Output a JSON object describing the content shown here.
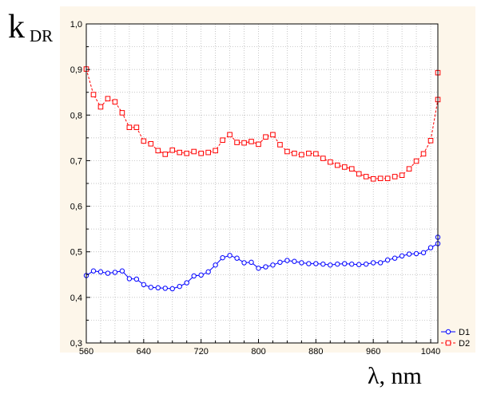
{
  "chart_data": {
    "type": "line",
    "ylabel_main": "k",
    "ylabel_sub": "DR",
    "xlabel": "λ, nm",
    "xlim": [
      560,
      1050
    ],
    "ylim": [
      0.3,
      1.0
    ],
    "xticks": [
      560,
      640,
      720,
      800,
      880,
      960,
      1040
    ],
    "yticks": [
      0.3,
      0.4,
      0.5,
      0.6,
      0.7,
      0.8,
      0.9,
      1.0
    ],
    "xtick_labels": [
      "560",
      "640",
      "720",
      "800",
      "880",
      "960",
      "1040"
    ],
    "ytick_labels": [
      "0,3",
      "0,4",
      "0,5",
      "0,6",
      "0,7",
      "0,8",
      "0,9",
      "1,0"
    ],
    "grid": true,
    "legend_position": "bottom-right",
    "x": [
      560,
      570,
      580,
      590,
      600,
      610,
      620,
      630,
      640,
      650,
      660,
      670,
      680,
      690,
      700,
      710,
      720,
      730,
      740,
      750,
      760,
      770,
      780,
      790,
      800,
      810,
      820,
      830,
      840,
      850,
      860,
      870,
      880,
      890,
      900,
      910,
      920,
      930,
      940,
      950,
      960,
      970,
      980,
      990,
      1000,
      1010,
      1020,
      1030,
      1040,
      1050
    ],
    "series": [
      {
        "name": "D1",
        "color": "#0000ff",
        "marker": "circle",
        "line_style": "solid",
        "values": [
          0.448,
          0.458,
          0.456,
          0.453,
          0.455,
          0.458,
          0.441,
          0.44,
          0.428,
          0.422,
          0.421,
          0.42,
          0.419,
          0.424,
          0.432,
          0.447,
          0.449,
          0.456,
          0.471,
          0.487,
          0.492,
          0.486,
          0.476,
          0.477,
          0.464,
          0.467,
          0.471,
          0.477,
          0.481,
          0.479,
          0.476,
          0.474,
          0.474,
          0.473,
          0.471,
          0.473,
          0.474,
          0.473,
          0.472,
          0.473,
          0.476,
          0.476,
          0.482,
          0.486,
          0.491,
          0.495,
          0.496,
          0.498,
          0.509,
          0.518
        ]
      },
      {
        "name": "D2",
        "color": "#ff0000",
        "marker": "square",
        "line_style": "dashed",
        "values": [
          0.901,
          0.845,
          0.818,
          0.836,
          0.829,
          0.805,
          0.773,
          0.773,
          0.743,
          0.737,
          0.722,
          0.714,
          0.723,
          0.718,
          0.716,
          0.72,
          0.716,
          0.718,
          0.722,
          0.745,
          0.757,
          0.74,
          0.739,
          0.742,
          0.736,
          0.752,
          0.757,
          0.735,
          0.72,
          0.716,
          0.713,
          0.716,
          0.715,
          0.705,
          0.697,
          0.69,
          0.686,
          0.682,
          0.671,
          0.665,
          0.66,
          0.661,
          0.661,
          0.665,
          0.668,
          0.682,
          0.699,
          0.715,
          0.744,
          0.834
        ]
      }
    ],
    "series_last": [
      {
        "name": "D1",
        "x": 1055,
        "value": 0.532
      },
      {
        "name": "D2",
        "x": 1055,
        "value": 0.893
      }
    ]
  }
}
